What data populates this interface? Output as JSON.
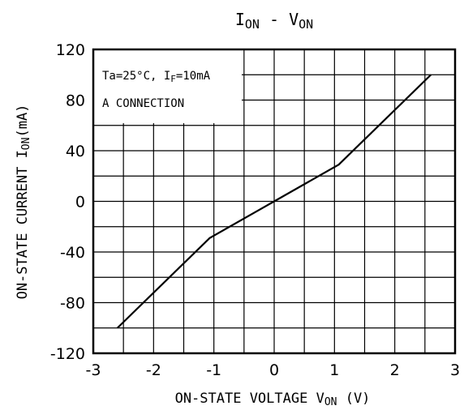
{
  "chart_data": {
    "type": "line",
    "title": {
      "main": "I",
      "main_sub": "ON",
      "sep": " - ",
      "var": "V",
      "var_sub": "ON"
    },
    "xlabel": {
      "main": "ON-STATE VOLTAGE V",
      "sub": "ON",
      "unit": " (V)"
    },
    "ylabel": {
      "main": "ON-STATE CURRENT  I",
      "sub": "ON",
      "unit": "(mA)"
    },
    "xlim": [
      -3,
      3
    ],
    "ylim": [
      -120,
      120
    ],
    "x_ticks": [
      "-3",
      "-2",
      "-1",
      "0",
      "1",
      "2",
      "3"
    ],
    "y_ticks": [
      "120",
      "80",
      "40",
      "0",
      "-40",
      "-80",
      "-120"
    ],
    "grid": true,
    "annotation": {
      "line1_pre": "Ta=25°C, I",
      "line1_sub": "F",
      "line1_post": "=10mA",
      "line2": "A CONNECTION"
    },
    "series": [
      {
        "x": [
          -2.6,
          -1.07,
          0,
          1.07,
          2.6
        ],
        "y": [
          -100,
          -29,
          0,
          29,
          100
        ]
      }
    ]
  }
}
